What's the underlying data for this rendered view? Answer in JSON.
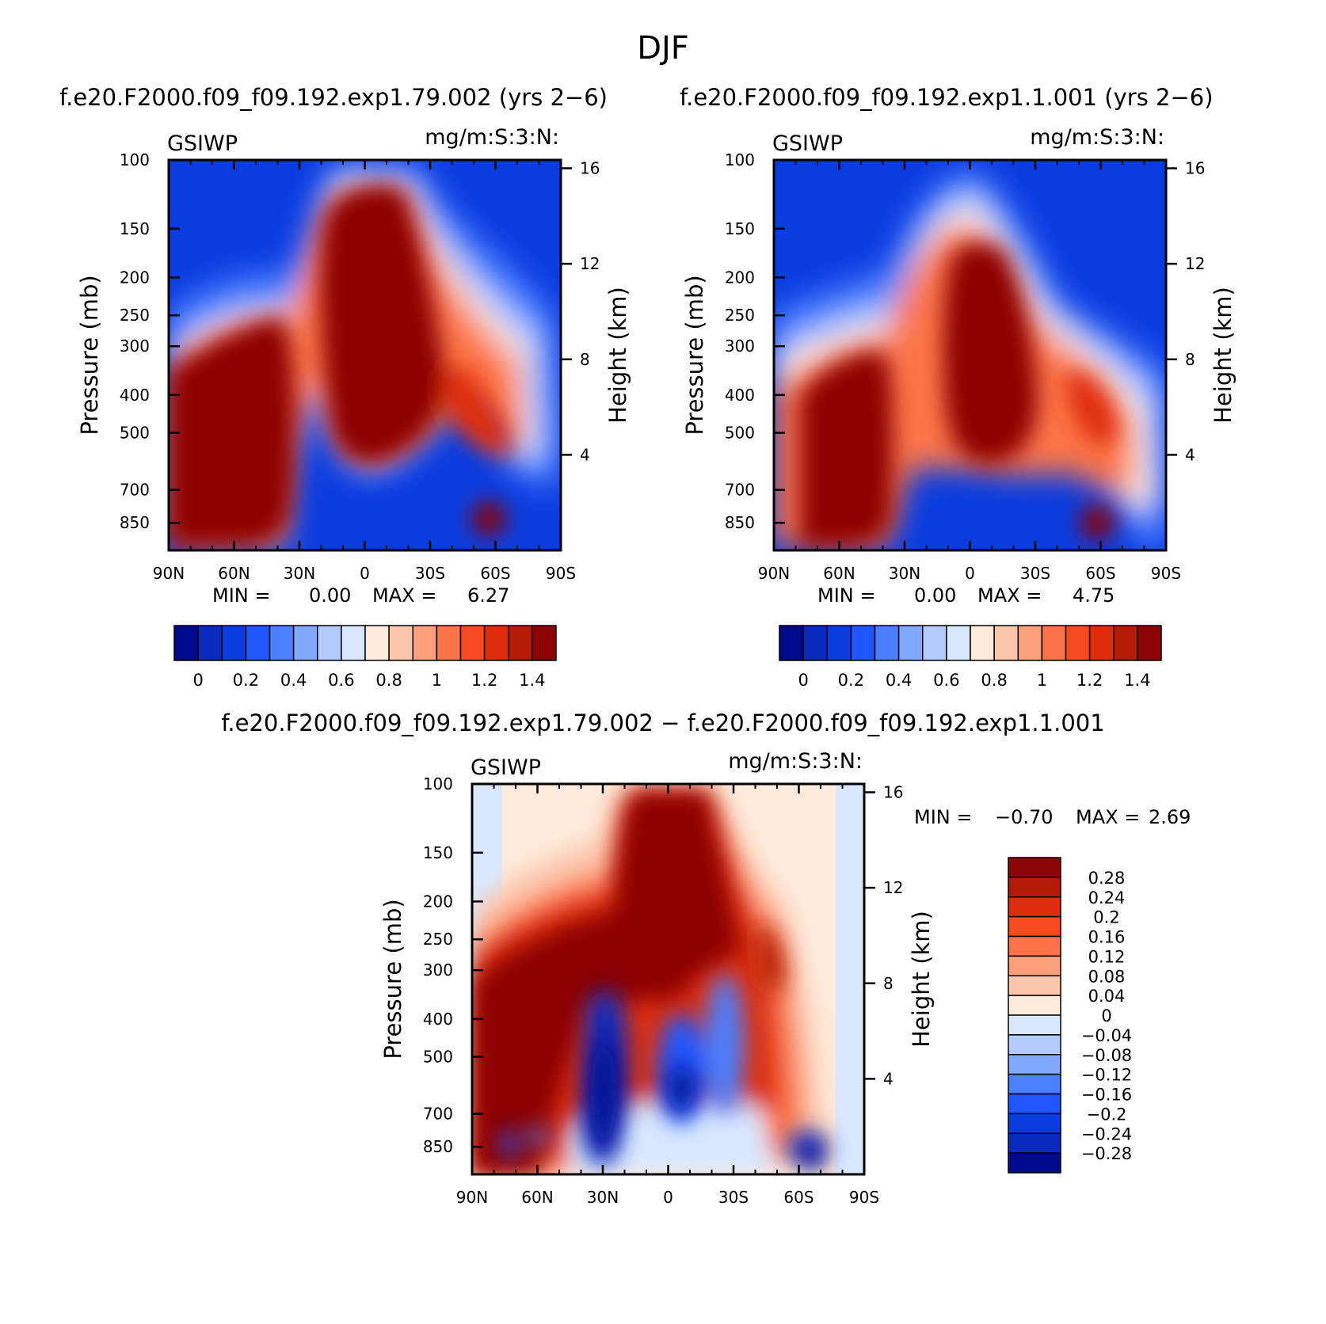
{
  "figure_title": "DJF",
  "colors": {
    "div": [
      "#000a8c",
      "#0a2cbc",
      "#0a3de0",
      "#1f56ff",
      "#4c7fff",
      "#82a8ff",
      "#b4cbff",
      "#d9e8ff",
      "#feeadb",
      "#fdc6aa",
      "#fca07c",
      "#fc7449",
      "#f7491f",
      "#de2d0c",
      "#b41b06",
      "#8c0404"
    ]
  },
  "chart_data": [
    {
      "id": "top-left",
      "type": "heatmap",
      "title": "f.e20.F2000.f09_f09.192.exp1.79.002 (yrs 2−6)",
      "left_label": "GSIWP",
      "right_label": "mg/m:S:3:N:",
      "xlabel": "",
      "ylabel": "Pressure (mb)",
      "y2label": "Height (km)",
      "x_ticks": [
        "90N",
        "60N",
        "30N",
        "0",
        "30S",
        "60S",
        "90S"
      ],
      "y_ticks": [
        "100",
        "150",
        "200",
        "250",
        "300",
        "400",
        "500",
        "700",
        "850"
      ],
      "y_tick_values": [
        100,
        150,
        200,
        250,
        300,
        400,
        500,
        700,
        850
      ],
      "y2_ticks": [
        "16",
        "12",
        "8",
        "4"
      ],
      "y2_tick_values": [
        16,
        12,
        8,
        4
      ],
      "ylim": [
        100,
        1000
      ],
      "stats": {
        "min_label": "MIN =",
        "min": "0.00",
        "max_label": "MAX =",
        "max": "6.27"
      },
      "colorbar": {
        "orientation": "horizontal",
        "levels": [
          "0",
          "0.2",
          "0.4",
          "0.6",
          "0.8",
          "1",
          "1.2",
          "1.4"
        ]
      }
    },
    {
      "id": "top-right",
      "type": "heatmap",
      "title": "f.e20.F2000.f09_f09.192.exp1.1.001 (yrs 2−6)",
      "left_label": "GSIWP",
      "right_label": "mg/m:S:3:N:",
      "xlabel": "",
      "ylabel": "Pressure (mb)",
      "y2label": "Height (km)",
      "x_ticks": [
        "90N",
        "60N",
        "30N",
        "0",
        "30S",
        "60S",
        "90S"
      ],
      "y_ticks": [
        "100",
        "150",
        "200",
        "250",
        "300",
        "400",
        "500",
        "700",
        "850"
      ],
      "y_tick_values": [
        100,
        150,
        200,
        250,
        300,
        400,
        500,
        700,
        850
      ],
      "y2_ticks": [
        "16",
        "12",
        "8",
        "4"
      ],
      "y2_tick_values": [
        16,
        12,
        8,
        4
      ],
      "ylim": [
        100,
        1000
      ],
      "stats": {
        "min_label": "MIN =",
        "min": "0.00",
        "max_label": "MAX =",
        "max": "4.75"
      },
      "colorbar": {
        "orientation": "horizontal",
        "levels": [
          "0",
          "0.2",
          "0.4",
          "0.6",
          "0.8",
          "1",
          "1.2",
          "1.4"
        ]
      }
    },
    {
      "id": "bottom",
      "type": "heatmap",
      "title": "f.e20.F2000.f09_f09.192.exp1.79.002 − f.e20.F2000.f09_f09.192.exp1.1.001",
      "left_label": "GSIWP",
      "right_label": "mg/m:S:3:N:",
      "xlabel": "",
      "ylabel": "Pressure (mb)",
      "y2label": "Height (km)",
      "x_ticks": [
        "90N",
        "60N",
        "30N",
        "0",
        "30S",
        "60S",
        "90S"
      ],
      "y_ticks": [
        "100",
        "150",
        "200",
        "250",
        "300",
        "400",
        "500",
        "700",
        "850"
      ],
      "y_tick_values": [
        100,
        150,
        200,
        250,
        300,
        400,
        500,
        700,
        850
      ],
      "y2_ticks": [
        "16",
        "12",
        "8",
        "4"
      ],
      "y2_tick_values": [
        16,
        12,
        8,
        4
      ],
      "ylim": [
        100,
        1000
      ],
      "stats": {
        "min_label": "MIN =",
        "min": "−0.70",
        "max_label": "MAX =",
        "max": "2.69"
      },
      "colorbar": {
        "orientation": "vertical",
        "levels": [
          "0.28",
          "0.24",
          "0.2",
          "0.16",
          "0.12",
          "0.08",
          "0.04",
          "0",
          "−0.04",
          "−0.08",
          "−0.12",
          "−0.16",
          "−0.2",
          "−0.24",
          "−0.28"
        ]
      }
    }
  ]
}
